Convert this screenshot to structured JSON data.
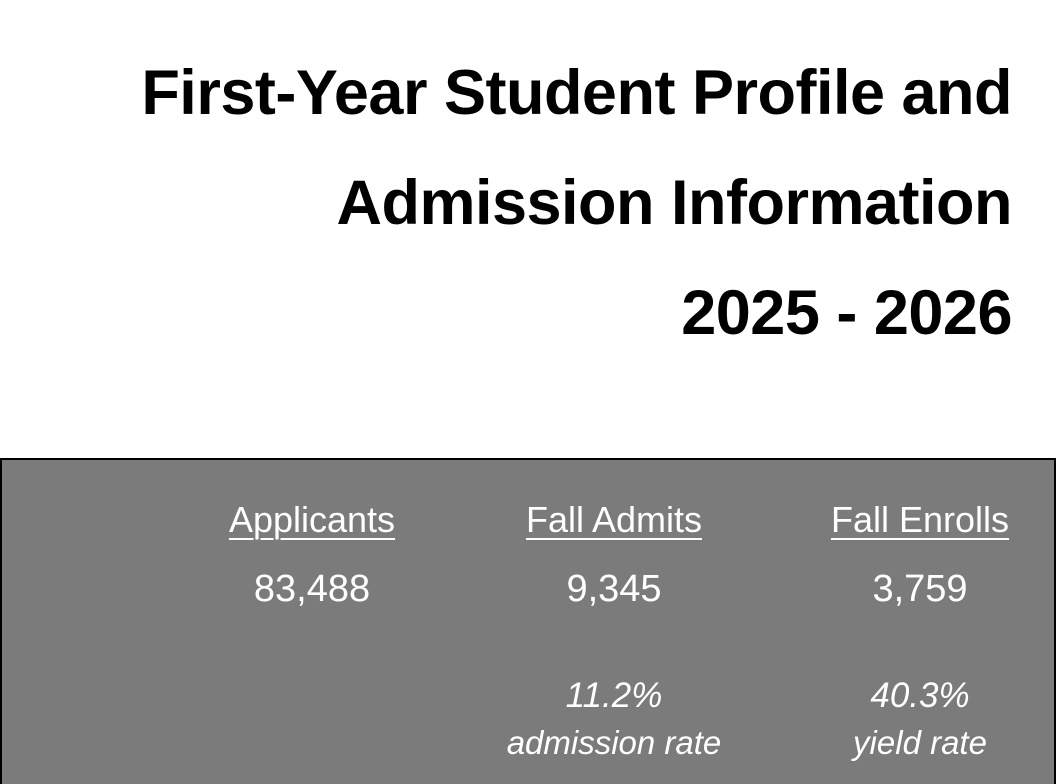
{
  "title": {
    "line1": "First-Year Student Profile and",
    "line2": "Admission Information",
    "line3": "2025 - 2026"
  },
  "stats": {
    "applicants": {
      "label": "Applicants",
      "value": "83,488"
    },
    "fall_admits": {
      "label": "Fall Admits",
      "value": "9,345",
      "rate": "11.2%",
      "rate_label": "admission rate"
    },
    "fall_enrolls": {
      "label": "Fall Enrolls",
      "value": "3,759",
      "rate": "40.3%",
      "rate_label": "yield rate"
    }
  },
  "colors": {
    "panel_background": "#7b7b7b",
    "panel_text": "#ffffff",
    "title_text": "#000000"
  }
}
